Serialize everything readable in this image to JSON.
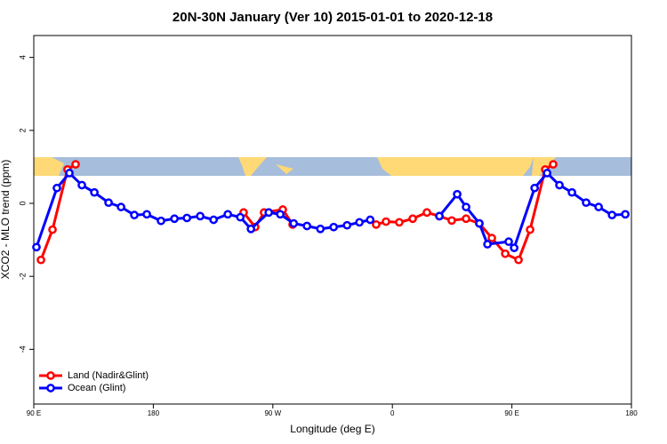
{
  "chart_data": {
    "type": "line",
    "title": "20N-30N January (Ver 10)   2015-01-01 to 2020-12-18",
    "x_label": "Longitude (deg E)",
    "y_label": "XCO2 - MLO trend (ppm)",
    "xlim": [
      90,
      540
    ],
    "xticks": [
      {
        "value": 90,
        "label": "90 E"
      },
      180,
      {
        "value": 270,
        "label": "90 W"
      },
      {
        "value": 360,
        "label": "0"
      },
      {
        "value": 450,
        "label": "90 E"
      },
      {
        "value": 540,
        "label": "180"
      }
    ],
    "ylim": [
      -5.5,
      4.6
    ],
    "yticks": [
      -4,
      -2,
      0,
      2,
      4
    ],
    "legend": "bottom-left",
    "series": [
      {
        "name": "Land (Nadir&Glint)",
        "color": "#ff0000",
        "x": [
          95.4,
          104.1,
          115.4,
          121.5,
          null,
          248.0,
          256.7,
          263.4,
          277.5,
          284.9,
          null,
          347.8,
          355.2,
          365.2,
          375.3,
          386.0,
          395.4,
          404.7,
          415.5,
          425.5,
          434.9,
          445.0,
          455.0,
          463.7,
          475.1,
          481.1
        ],
        "values": [
          -1.55,
          -0.72,
          0.93,
          1.07,
          null,
          -0.25,
          -0.65,
          -0.25,
          -0.17,
          -0.58,
          null,
          -0.58,
          -0.5,
          -0.52,
          -0.42,
          -0.25,
          -0.35,
          -0.47,
          -0.42,
          -0.55,
          -0.95,
          -1.38,
          -1.55,
          -0.72,
          0.93,
          1.07
        ]
      },
      {
        "name": "Ocean (Glint)",
        "color": "#0000ff",
        "x": [
          92.0,
          107.4,
          116.8,
          126.2,
          135.6,
          146.3,
          155.7,
          165.7,
          175.1,
          185.8,
          195.9,
          205.3,
          215.3,
          225.4,
          236.1,
          245.5,
          253.5,
          266.9,
          275.6,
          285.7,
          295.7,
          305.8,
          315.8,
          325.9,
          335.2,
          343.3,
          null,
          395.4,
          408.8,
          415.5,
          425.5,
          431.6,
          447.6,
          451.7,
          467.1,
          476.5,
          485.8,
          495.2,
          505.9,
          515.3,
          525.4,
          535.4
        ],
        "values": [
          -1.2,
          0.42,
          0.83,
          0.5,
          0.3,
          0.02,
          -0.1,
          -0.32,
          -0.3,
          -0.48,
          -0.42,
          -0.4,
          -0.35,
          -0.45,
          -0.3,
          -0.38,
          -0.7,
          -0.25,
          -0.3,
          -0.55,
          -0.62,
          -0.7,
          -0.65,
          -0.6,
          -0.52,
          -0.45,
          null,
          -0.35,
          0.25,
          -0.1,
          -0.55,
          -1.12,
          -1.05,
          -1.22,
          0.42,
          0.83,
          0.5,
          0.3,
          0.02,
          -0.1,
          -0.32,
          -0.3
        ]
      }
    ]
  }
}
